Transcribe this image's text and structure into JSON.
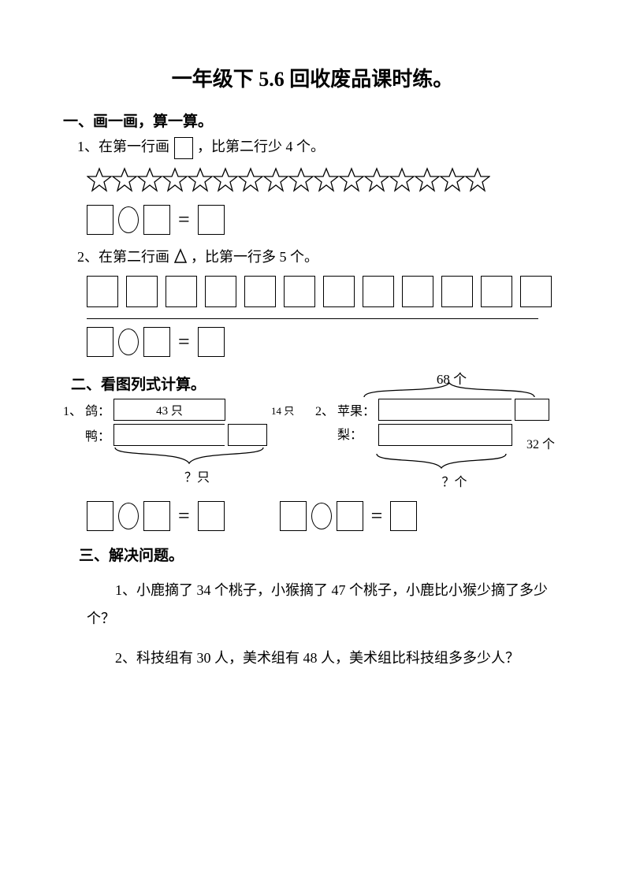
{
  "title": "一年级下 5.6 回收废品课时练。",
  "section1": {
    "header": "一、画一画，算一算。",
    "item1_pre": "1、在第一行画",
    "item1_post": "，比第二行少 4 个。",
    "star_count": 16,
    "item2_pre": "2、在第二行画",
    "item2_post": "，比第一行多 5 个。",
    "square_count": 12
  },
  "section2": {
    "header": "二、看图列式计算。",
    "p1_label": "1、",
    "ge_label": "鸽：",
    "ge_value": "43 只",
    "extra_value": "14 只",
    "ya_label": "鸭：",
    "q1": "？只",
    "p2_label": "2、",
    "apple_label": "苹果：",
    "top_label": "68 个",
    "pear_label": "梨：",
    "pear_extra": "32 个",
    "q2": "？个"
  },
  "section3": {
    "header": "三、解决问题。",
    "q1": "1、小鹿摘了 34 个桃子，小猴摘了 47 个桃子，小鹿比小猴少摘了多少个？",
    "q2": "2、科技组有 30 人，美术组有 48 人，美术组比科技组多多少人？"
  },
  "style": {
    "stroke": "#000000",
    "bg": "#ffffff"
  }
}
